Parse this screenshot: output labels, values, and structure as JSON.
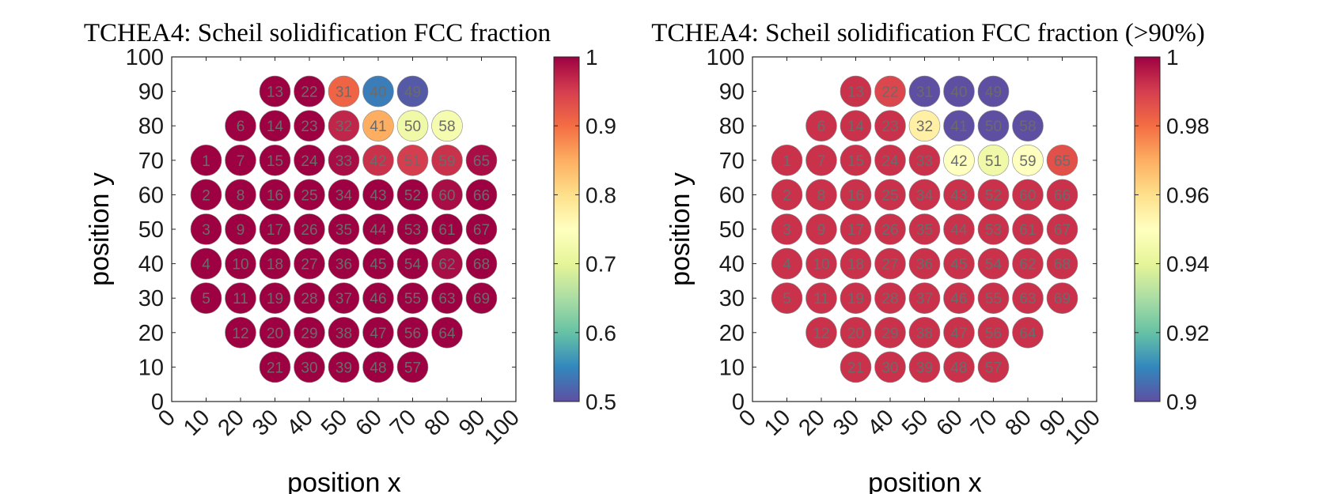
{
  "chart_data": [
    {
      "type": "scatter",
      "title": "TCHEA4: Scheil solidification FCC fraction",
      "xlabel": "position x",
      "ylabel": "position y",
      "xlim": [
        0,
        100
      ],
      "ylim": [
        0,
        100
      ],
      "xticks": [
        "0",
        "10",
        "20",
        "30",
        "40",
        "50",
        "60",
        "70",
        "80",
        "90",
        "100"
      ],
      "yticks": [
        "0",
        "10",
        "20",
        "30",
        "40",
        "50",
        "60",
        "70",
        "80",
        "90",
        "100"
      ],
      "colorbar": {
        "min": 0.5,
        "max": 1.0,
        "colormap": "spectral",
        "ticks": [
          "0.5",
          "0.6",
          "0.7",
          "0.8",
          "0.9",
          "1"
        ]
      },
      "points": [
        {
          "id": "1",
          "x": 10,
          "y": 70,
          "v": 1.0
        },
        {
          "id": "2",
          "x": 10,
          "y": 60,
          "v": 1.0
        },
        {
          "id": "3",
          "x": 10,
          "y": 50,
          "v": 1.0
        },
        {
          "id": "4",
          "x": 10,
          "y": 40,
          "v": 1.0
        },
        {
          "id": "5",
          "x": 10,
          "y": 30,
          "v": 1.0
        },
        {
          "id": "6",
          "x": 20,
          "y": 80,
          "v": 1.0
        },
        {
          "id": "7",
          "x": 20,
          "y": 70,
          "v": 1.0
        },
        {
          "id": "8",
          "x": 20,
          "y": 60,
          "v": 1.0
        },
        {
          "id": "9",
          "x": 20,
          "y": 50,
          "v": 1.0
        },
        {
          "id": "10",
          "x": 20,
          "y": 40,
          "v": 1.0
        },
        {
          "id": "11",
          "x": 20,
          "y": 30,
          "v": 1.0
        },
        {
          "id": "12",
          "x": 20,
          "y": 20,
          "v": 1.0
        },
        {
          "id": "13",
          "x": 30,
          "y": 90,
          "v": 1.0
        },
        {
          "id": "14",
          "x": 30,
          "y": 80,
          "v": 1.0
        },
        {
          "id": "15",
          "x": 30,
          "y": 70,
          "v": 1.0
        },
        {
          "id": "16",
          "x": 30,
          "y": 60,
          "v": 1.0
        },
        {
          "id": "17",
          "x": 30,
          "y": 50,
          "v": 1.0
        },
        {
          "id": "18",
          "x": 30,
          "y": 40,
          "v": 1.0
        },
        {
          "id": "19",
          "x": 30,
          "y": 30,
          "v": 1.0
        },
        {
          "id": "20",
          "x": 30,
          "y": 20,
          "v": 1.0
        },
        {
          "id": "21",
          "x": 30,
          "y": 10,
          "v": 1.0
        },
        {
          "id": "22",
          "x": 40,
          "y": 90,
          "v": 1.0
        },
        {
          "id": "23",
          "x": 40,
          "y": 80,
          "v": 1.0
        },
        {
          "id": "24",
          "x": 40,
          "y": 70,
          "v": 1.0
        },
        {
          "id": "25",
          "x": 40,
          "y": 60,
          "v": 1.0
        },
        {
          "id": "26",
          "x": 40,
          "y": 50,
          "v": 1.0
        },
        {
          "id": "27",
          "x": 40,
          "y": 40,
          "v": 1.0
        },
        {
          "id": "28",
          "x": 40,
          "y": 30,
          "v": 1.0
        },
        {
          "id": "29",
          "x": 40,
          "y": 20,
          "v": 1.0
        },
        {
          "id": "30",
          "x": 40,
          "y": 10,
          "v": 1.0
        },
        {
          "id": "31",
          "x": 50,
          "y": 90,
          "v": 0.91
        },
        {
          "id": "32",
          "x": 50,
          "y": 80,
          "v": 0.97
        },
        {
          "id": "33",
          "x": 50,
          "y": 70,
          "v": 0.99
        },
        {
          "id": "34",
          "x": 50,
          "y": 60,
          "v": 1.0
        },
        {
          "id": "35",
          "x": 50,
          "y": 50,
          "v": 1.0
        },
        {
          "id": "36",
          "x": 50,
          "y": 40,
          "v": 1.0
        },
        {
          "id": "37",
          "x": 50,
          "y": 30,
          "v": 1.0
        },
        {
          "id": "38",
          "x": 50,
          "y": 20,
          "v": 1.0
        },
        {
          "id": "39",
          "x": 50,
          "y": 10,
          "v": 1.0
        },
        {
          "id": "40",
          "x": 60,
          "y": 90,
          "v": 0.54
        },
        {
          "id": "41",
          "x": 60,
          "y": 80,
          "v": 0.85
        },
        {
          "id": "42",
          "x": 60,
          "y": 70,
          "v": 0.96
        },
        {
          "id": "43",
          "x": 60,
          "y": 60,
          "v": 1.0
        },
        {
          "id": "44",
          "x": 60,
          "y": 50,
          "v": 1.0
        },
        {
          "id": "45",
          "x": 60,
          "y": 40,
          "v": 1.0
        },
        {
          "id": "46",
          "x": 60,
          "y": 30,
          "v": 1.0
        },
        {
          "id": "47",
          "x": 60,
          "y": 20,
          "v": 1.0
        },
        {
          "id": "48",
          "x": 60,
          "y": 10,
          "v": 1.0
        },
        {
          "id": "49",
          "x": 70,
          "y": 90,
          "v": 0.51
        },
        {
          "id": "50",
          "x": 70,
          "y": 80,
          "v": 0.72
        },
        {
          "id": "51",
          "x": 70,
          "y": 70,
          "v": 0.95
        },
        {
          "id": "52",
          "x": 70,
          "y": 60,
          "v": 1.0
        },
        {
          "id": "53",
          "x": 70,
          "y": 50,
          "v": 1.0
        },
        {
          "id": "54",
          "x": 70,
          "y": 40,
          "v": 1.0
        },
        {
          "id": "55",
          "x": 70,
          "y": 30,
          "v": 1.0
        },
        {
          "id": "56",
          "x": 70,
          "y": 20,
          "v": 1.0
        },
        {
          "id": "57",
          "x": 70,
          "y": 10,
          "v": 1.0
        },
        {
          "id": "58",
          "x": 80,
          "y": 80,
          "v": 0.73
        },
        {
          "id": "59",
          "x": 80,
          "y": 70,
          "v": 0.96
        },
        {
          "id": "60",
          "x": 80,
          "y": 60,
          "v": 0.99
        },
        {
          "id": "61",
          "x": 80,
          "y": 50,
          "v": 1.0
        },
        {
          "id": "62",
          "x": 80,
          "y": 40,
          "v": 0.99
        },
        {
          "id": "63",
          "x": 80,
          "y": 30,
          "v": 1.0
        },
        {
          "id": "64",
          "x": 80,
          "y": 20,
          "v": 1.0
        },
        {
          "id": "65",
          "x": 90,
          "y": 70,
          "v": 0.99
        },
        {
          "id": "66",
          "x": 90,
          "y": 60,
          "v": 1.0
        },
        {
          "id": "67",
          "x": 90,
          "y": 50,
          "v": 1.0
        },
        {
          "id": "68",
          "x": 90,
          "y": 40,
          "v": 1.0
        },
        {
          "id": "69",
          "x": 90,
          "y": 30,
          "v": 1.0
        }
      ]
    },
    {
      "type": "scatter",
      "title": "TCHEA4: Scheil solidification FCC fraction (>90%)",
      "xlabel": "position x",
      "ylabel": "position y",
      "xlim": [
        0,
        100
      ],
      "ylim": [
        0,
        100
      ],
      "xticks": [
        "0",
        "10",
        "20",
        "30",
        "40",
        "50",
        "60",
        "70",
        "80",
        "90",
        "100"
      ],
      "yticks": [
        "0",
        "10",
        "20",
        "30",
        "40",
        "50",
        "60",
        "70",
        "80",
        "90",
        "100"
      ],
      "colorbar": {
        "min": 0.9,
        "max": 1.0,
        "colormap": "spectral",
        "ticks": [
          "0.9",
          "0.92",
          "0.94",
          "0.96",
          "0.98",
          "1"
        ]
      },
      "points": [
        {
          "id": "1",
          "x": 10,
          "y": 70,
          "v": 0.992
        },
        {
          "id": "2",
          "x": 10,
          "y": 60,
          "v": 0.992
        },
        {
          "id": "3",
          "x": 10,
          "y": 50,
          "v": 0.992
        },
        {
          "id": "4",
          "x": 10,
          "y": 40,
          "v": 0.992
        },
        {
          "id": "5",
          "x": 10,
          "y": 30,
          "v": 0.992
        },
        {
          "id": "6",
          "x": 20,
          "y": 80,
          "v": 0.992
        },
        {
          "id": "7",
          "x": 20,
          "y": 70,
          "v": 0.992
        },
        {
          "id": "8",
          "x": 20,
          "y": 60,
          "v": 0.992
        },
        {
          "id": "9",
          "x": 20,
          "y": 50,
          "v": 0.992
        },
        {
          "id": "10",
          "x": 20,
          "y": 40,
          "v": 0.992
        },
        {
          "id": "11",
          "x": 20,
          "y": 30,
          "v": 0.992
        },
        {
          "id": "12",
          "x": 20,
          "y": 20,
          "v": 0.992
        },
        {
          "id": "13",
          "x": 30,
          "y": 90,
          "v": 0.992
        },
        {
          "id": "14",
          "x": 30,
          "y": 80,
          "v": 0.992
        },
        {
          "id": "15",
          "x": 30,
          "y": 70,
          "v": 0.992
        },
        {
          "id": "16",
          "x": 30,
          "y": 60,
          "v": 0.992
        },
        {
          "id": "17",
          "x": 30,
          "y": 50,
          "v": 0.992
        },
        {
          "id": "18",
          "x": 30,
          "y": 40,
          "v": 0.992
        },
        {
          "id": "19",
          "x": 30,
          "y": 30,
          "v": 0.992
        },
        {
          "id": "20",
          "x": 30,
          "y": 20,
          "v": 0.992
        },
        {
          "id": "21",
          "x": 30,
          "y": 10,
          "v": 0.992
        },
        {
          "id": "22",
          "x": 40,
          "y": 90,
          "v": 0.988
        },
        {
          "id": "23",
          "x": 40,
          "y": 80,
          "v": 0.992
        },
        {
          "id": "24",
          "x": 40,
          "y": 70,
          "v": 0.992
        },
        {
          "id": "25",
          "x": 40,
          "y": 60,
          "v": 0.992
        },
        {
          "id": "26",
          "x": 40,
          "y": 50,
          "v": 0.992
        },
        {
          "id": "27",
          "x": 40,
          "y": 40,
          "v": 0.992
        },
        {
          "id": "28",
          "x": 40,
          "y": 30,
          "v": 0.992
        },
        {
          "id": "29",
          "x": 40,
          "y": 20,
          "v": 0.992
        },
        {
          "id": "30",
          "x": 40,
          "y": 10,
          "v": 0.992
        },
        {
          "id": "31",
          "x": 50,
          "y": 90,
          "v": 0.9
        },
        {
          "id": "32",
          "x": 50,
          "y": 80,
          "v": 0.955
        },
        {
          "id": "33",
          "x": 50,
          "y": 70,
          "v": 0.992
        },
        {
          "id": "34",
          "x": 50,
          "y": 60,
          "v": 0.992
        },
        {
          "id": "35",
          "x": 50,
          "y": 50,
          "v": 0.992
        },
        {
          "id": "36",
          "x": 50,
          "y": 40,
          "v": 0.992
        },
        {
          "id": "37",
          "x": 50,
          "y": 30,
          "v": 0.992
        },
        {
          "id": "38",
          "x": 50,
          "y": 20,
          "v": 0.992
        },
        {
          "id": "39",
          "x": 50,
          "y": 10,
          "v": 0.992
        },
        {
          "id": "40",
          "x": 60,
          "y": 90,
          "v": 0.9
        },
        {
          "id": "41",
          "x": 60,
          "y": 80,
          "v": 0.9
        },
        {
          "id": "42",
          "x": 60,
          "y": 70,
          "v": 0.95
        },
        {
          "id": "43",
          "x": 60,
          "y": 60,
          "v": 0.992
        },
        {
          "id": "44",
          "x": 60,
          "y": 50,
          "v": 0.992
        },
        {
          "id": "45",
          "x": 60,
          "y": 40,
          "v": 0.992
        },
        {
          "id": "46",
          "x": 60,
          "y": 30,
          "v": 0.992
        },
        {
          "id": "47",
          "x": 60,
          "y": 20,
          "v": 0.992
        },
        {
          "id": "48",
          "x": 60,
          "y": 10,
          "v": 0.992
        },
        {
          "id": "49",
          "x": 70,
          "y": 90,
          "v": 0.9
        },
        {
          "id": "50",
          "x": 70,
          "y": 80,
          "v": 0.9
        },
        {
          "id": "51",
          "x": 70,
          "y": 70,
          "v": 0.944
        },
        {
          "id": "52",
          "x": 70,
          "y": 60,
          "v": 0.992
        },
        {
          "id": "53",
          "x": 70,
          "y": 50,
          "v": 0.992
        },
        {
          "id": "54",
          "x": 70,
          "y": 40,
          "v": 0.992
        },
        {
          "id": "55",
          "x": 70,
          "y": 30,
          "v": 0.992
        },
        {
          "id": "56",
          "x": 70,
          "y": 20,
          "v": 0.992
        },
        {
          "id": "57",
          "x": 70,
          "y": 10,
          "v": 0.992
        },
        {
          "id": "58",
          "x": 80,
          "y": 80,
          "v": 0.9
        },
        {
          "id": "59",
          "x": 80,
          "y": 70,
          "v": 0.95
        },
        {
          "id": "60",
          "x": 80,
          "y": 60,
          "v": 0.992
        },
        {
          "id": "61",
          "x": 80,
          "y": 50,
          "v": 0.992
        },
        {
          "id": "62",
          "x": 80,
          "y": 40,
          "v": 0.992
        },
        {
          "id": "63",
          "x": 80,
          "y": 30,
          "v": 0.992
        },
        {
          "id": "64",
          "x": 80,
          "y": 20,
          "v": 0.992
        },
        {
          "id": "65",
          "x": 90,
          "y": 70,
          "v": 0.986
        },
        {
          "id": "66",
          "x": 90,
          "y": 60,
          "v": 0.992
        },
        {
          "id": "67",
          "x": 90,
          "y": 50,
          "v": 0.992
        },
        {
          "id": "68",
          "x": 90,
          "y": 40,
          "v": 0.992
        },
        {
          "id": "69",
          "x": 90,
          "y": 30,
          "v": 0.992
        }
      ]
    }
  ],
  "colormap_stops": [
    "#5e4fa2",
    "#3288bd",
    "#66c2a5",
    "#abdda4",
    "#e6f598",
    "#ffffbf",
    "#fee08b",
    "#fdae61",
    "#f46d43",
    "#d53e4f",
    "#9e0142"
  ]
}
